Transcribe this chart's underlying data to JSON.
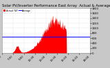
{
  "title": "Solar PV/Inverter Performance East Array  Actual & Average Power Output",
  "legend1": "Actual (W)",
  "legend2": "Average",
  "bg_color": "#c8c8c8",
  "plot_bg": "#ffffff",
  "bar_color": "#ff0000",
  "avg_line_color": "#0000ff",
  "avg_watts": 650,
  "ylim": [
    0,
    1800
  ],
  "yticks": [
    0,
    200,
    400,
    600,
    800,
    1000,
    1200,
    1400,
    1600,
    1800
  ],
  "num_points": 288,
  "title_fontsize": 3.8,
  "tick_fontsize": 2.8,
  "grid_color": "#bbbbbb",
  "x_tick_labels": [
    "6:00",
    "7:30",
    "9:00",
    "10:30",
    "12:00",
    "13:30",
    "15:00",
    "16:30",
    "18:00"
  ]
}
